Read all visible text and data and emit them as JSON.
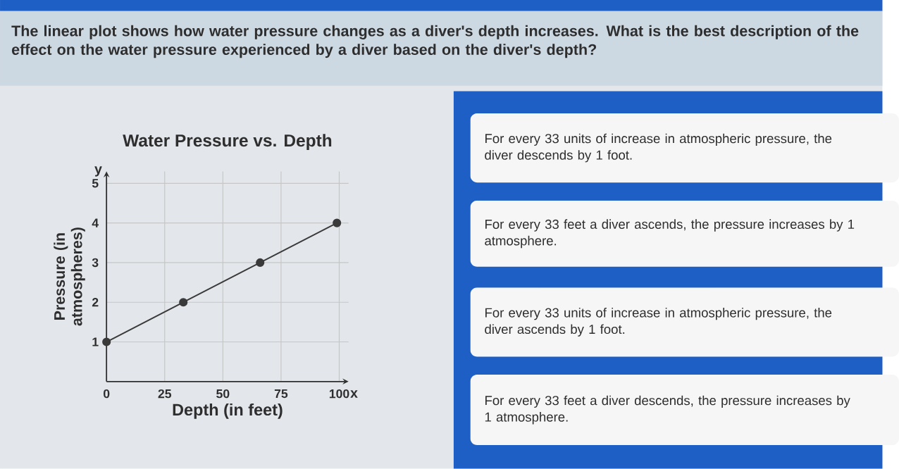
{
  "chart_data": {
    "type": "line",
    "title": "Water Pressure vs. Depth",
    "xlabel": "Depth (in feet)",
    "ylabel": "Pressure (in atmospheres)",
    "x": [
      0,
      33,
      66,
      99
    ],
    "series": [
      {
        "color": "#3a3a3a",
        "values": [
          1,
          2,
          3,
          4
        ]
      }
    ],
    "xlim": [
      0,
      104
    ],
    "ylim": [
      0,
      5.3
    ],
    "xticks": [
      0,
      25,
      50,
      75,
      100
    ],
    "yticks": [
      1,
      2,
      3,
      4,
      5
    ],
    "grid": true,
    "marker": "circle",
    "line_style": "solid",
    "annotations": [
      "The linear plot shows how water pressure changes as a diver's depth increases. What is the best description of the effect on the water pressure experienced by a diver based on the diver's depth?",
      "For every 33 units of increase in atmospheric pressure, the diver descends by 1 foot.",
      "For every 33 feet a diver ascends, the pressure increases by 1 atmosphere.",
      "For every 33 units of increase in atmospheric pressure, the diver ascends by 1 foot.",
      "For every 33 feet a diver descends, the pressure increases by 1 atmosphere.",
      "x",
      "y"
    ]
  }
}
